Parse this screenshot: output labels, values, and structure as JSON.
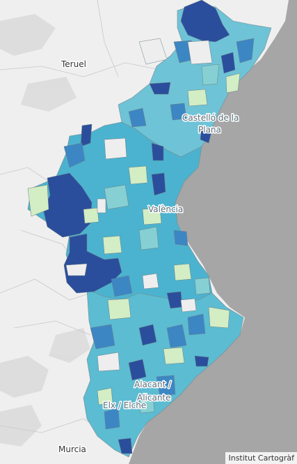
{
  "map": {
    "labels": {
      "teruel": "Teruel",
      "castellon_line1": "Castelló de la",
      "castellon_line2": "Plana",
      "valencia": "València",
      "alicante_line1": "Alacant /",
      "alicante_line2": "Alicante",
      "elche": "Elx / Elche",
      "murcia": "Murcia"
    },
    "attribution": "Institut Cartogràf",
    "colors": {
      "sea": "#a6a6a6",
      "land": "#eeeeee",
      "dark_blue": "#2b4e9c",
      "blue": "#3d86c4",
      "teal": "#4bb3cf",
      "light_teal": "#7fcdd4",
      "pale_green": "#d3edc4"
    }
  }
}
